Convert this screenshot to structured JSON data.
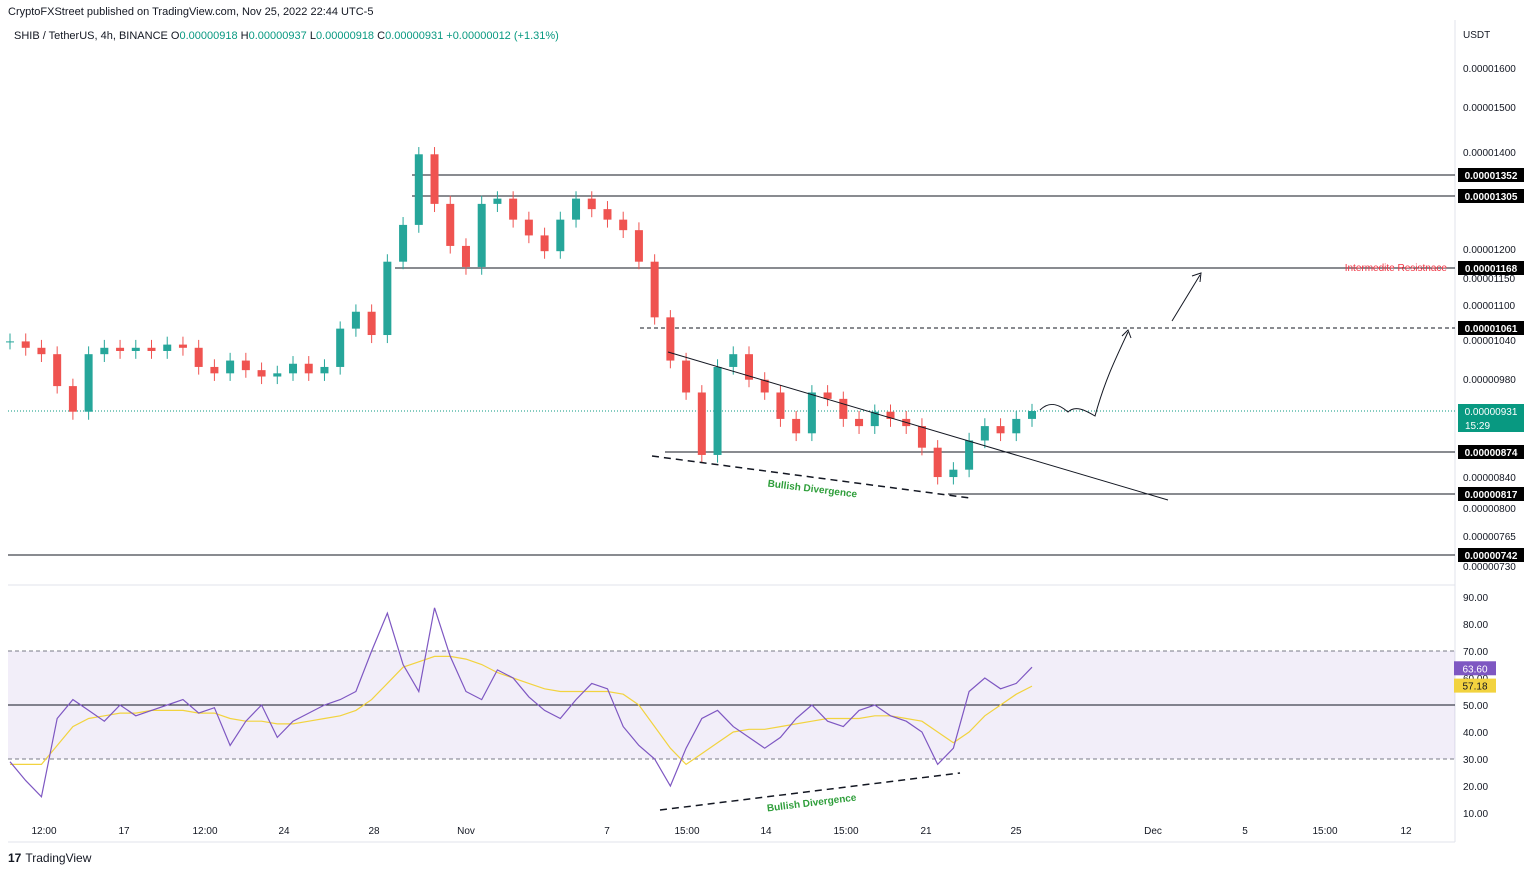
{
  "header": {
    "published": "CryptoFXStreet published on TradingView.com, Nov 25, 2022 22:44 UTC-5",
    "symbol": "SHIB / TetherUS, 4h, BINANCE",
    "o_label": "O",
    "o_value": "0.00000918",
    "h_label": "H",
    "h_value": "0.00000937",
    "l_label": "L",
    "l_value": "0.00000918",
    "c_label": "C",
    "c_value": "0.00000931",
    "change": "+0.00000012 (+1.31%)",
    "currency": "USDT"
  },
  "brand": {
    "logo_text": "17",
    "name": "TradingView"
  },
  "colors": {
    "up": "#26a69a",
    "down": "#ef5350",
    "rsi": "#7e57c2",
    "rsi_ma": "#f2d33f",
    "label_bg": "#000000",
    "price_bg": "#089981",
    "resistance": "#f23645",
    "divergence": "#2e9e3a"
  },
  "chart_data": [
    {
      "type": "candlestick",
      "title": "SHIB / TetherUS, 4h, BINANCE",
      "y_axis_ticks": [
        "0.00001600",
        "0.00001500",
        "0.00001400",
        "0.00001200",
        "0.00001150",
        "0.00001100",
        "0.00001040",
        "0.00000980",
        "0.00000840",
        "0.00000800",
        "0.00000765",
        "0.00000730"
      ],
      "x_axis_ticks": [
        "12:00",
        "17",
        "12:00",
        "24",
        "28",
        "Nov",
        "7",
        "15:00",
        "14",
        "15:00",
        "21",
        "25",
        "Dec",
        "5",
        "15:00",
        "12"
      ],
      "horizontal_levels": [
        {
          "label": "0.00001352",
          "value": 1.352e-05
        },
        {
          "label": "0.00001305",
          "value": 1.305e-05
        },
        {
          "label": "0.00001168",
          "value": 1.168e-05
        },
        {
          "label": "0.00001061",
          "value": 1.061e-05,
          "style": "dashed"
        },
        {
          "label": "0.00000874",
          "value": 8.74e-06
        },
        {
          "label": "0.00000817",
          "value": 8.17e-06
        },
        {
          "label": "0.00000742",
          "value": 7.42e-06
        }
      ],
      "current_price": {
        "label": "0.00000931",
        "countdown": "15:29"
      },
      "annotations": [
        "Intermedite Resistnace",
        "Bullish Divergence"
      ],
      "close_series": [
        1.04e-05,
        1.03e-05,
        1.02e-05,
        9.7e-06,
        9.3e-06,
        1.02e-05,
        1.03e-05,
        1.025e-05,
        1.03e-05,
        1.025e-05,
        1.035e-05,
        1.03e-05,
        1e-05,
        9.9e-06,
        1.01e-05,
        9.95e-06,
        9.85e-06,
        9.9e-06,
        1.005e-05,
        9.9e-06,
        1e-05,
        1.06e-05,
        1.09e-05,
        1.05e-05,
        1.18e-05,
        1.25e-05,
        1.4e-05,
        1.29e-05,
        1.21e-05,
        1.17e-05,
        1.29e-05,
        1.3e-05,
        1.26e-05,
        1.23e-05,
        1.2e-05,
        1.26e-05,
        1.3e-05,
        1.28e-05,
        1.26e-05,
        1.24e-05,
        1.18e-05,
        1.08e-05,
        1.01e-05,
        9.6e-06,
        8.7e-06,
        1e-05,
        1.02e-05,
        9.8e-06,
        9.6e-06,
        9.2e-06,
        9e-06,
        9.6e-06,
        9.5e-06,
        9.2e-06,
        9.1e-06,
        9.3e-06,
        9.2e-06,
        9.1e-06,
        8.8e-06,
        8.4e-06,
        8.5e-06,
        8.9e-06,
        9.1e-06,
        9e-06,
        9.2e-06,
        9.31e-06
      ]
    },
    {
      "type": "line",
      "title": "RSI",
      "y_axis_ticks": [
        "90.00",
        "80.00",
        "70.00",
        "60.00",
        "50.00",
        "40.00",
        "30.00",
        "20.00",
        "10.00"
      ],
      "band": [
        30,
        70
      ],
      "midline": 50,
      "series": [
        {
          "label": "63.60",
          "values": [
            29,
            22,
            16,
            45,
            52,
            48,
            44,
            50,
            46,
            48,
            50,
            52,
            47,
            49,
            35,
            44,
            50,
            38,
            44,
            47,
            50,
            52,
            55,
            70,
            84,
            65,
            55,
            86,
            68,
            55,
            52,
            63,
            60,
            53,
            48,
            45,
            52,
            58,
            56,
            42,
            35,
            30,
            20,
            34,
            45,
            48,
            42,
            38,
            34,
            38,
            45,
            50,
            44,
            42,
            48,
            50,
            46,
            44,
            40,
            28,
            34,
            55,
            60,
            56,
            58,
            64
          ]
        },
        {
          "label": "57.18",
          "values": [
            28,
            28,
            28,
            35,
            42,
            45,
            46,
            47,
            47,
            48,
            48,
            48,
            47,
            47,
            45,
            44,
            44,
            43,
            43,
            44,
            45,
            46,
            48,
            52,
            58,
            64,
            66,
            68,
            68,
            67,
            65,
            62,
            60,
            58,
            56,
            55,
            55,
            55,
            55,
            54,
            50,
            42,
            34,
            28,
            32,
            36,
            40,
            41,
            41,
            42,
            43,
            44,
            45,
            45,
            45,
            46,
            46,
            45,
            44,
            40,
            36,
            40,
            46,
            50,
            54,
            57
          ]
        }
      ]
    }
  ]
}
